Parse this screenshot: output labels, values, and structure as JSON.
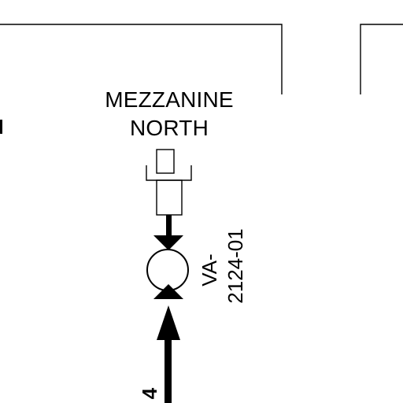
{
  "drawing": {
    "area_label": {
      "line1": "MEZZANINE",
      "line2": "NORTH"
    },
    "valve_tag": {
      "line1": "VA-",
      "line2": "2124-01"
    },
    "pipe_label": "4"
  }
}
